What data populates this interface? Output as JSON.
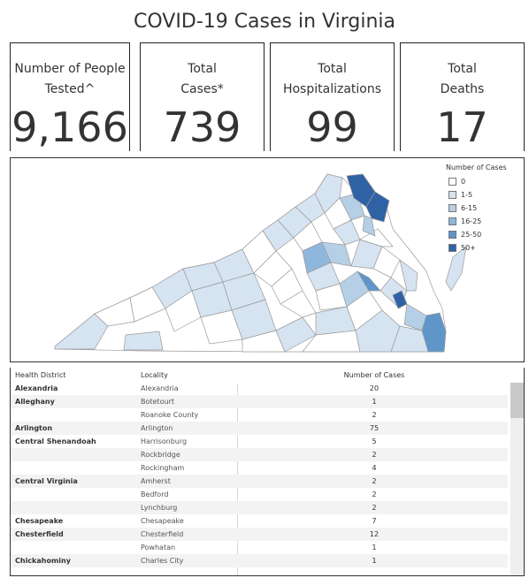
{
  "title": "COVID-19 Cases in Virginia",
  "kpis": [
    {
      "label": "Number of People\nTested^",
      "value": "9,166"
    },
    {
      "label": "Total\nCases*",
      "value": "739"
    },
    {
      "label": "Total\nHospitalizations",
      "value": "99"
    },
    {
      "label": "Total\nDeaths",
      "value": "17"
    }
  ],
  "legend": {
    "title": "Number of Cases",
    "items": [
      {
        "label": "0",
        "color": "#ffffff"
      },
      {
        "label": "1-5",
        "color": "#d6e3f1"
      },
      {
        "label": "6-15",
        "color": "#b5cfe7"
      },
      {
        "label": "16-25",
        "color": "#8fb7dd"
      },
      {
        "label": "25-50",
        "color": "#5f95c9"
      },
      {
        "label": "50+",
        "color": "#2f62a5"
      }
    ]
  },
  "table": {
    "headers": {
      "district": "Health District",
      "locality": "Locality",
      "cases": "Number of Cases"
    },
    "rows": [
      {
        "district": "Alexandria",
        "locality": "Alexandria",
        "cases": "20"
      },
      {
        "district": "Alleghany",
        "locality": "Botetourt",
        "cases": "1"
      },
      {
        "district": "",
        "locality": "Roanoke County",
        "cases": "2"
      },
      {
        "district": "Arlington",
        "locality": "Arlington",
        "cases": "75"
      },
      {
        "district": "Central Shenandoah",
        "locality": "Harrisonburg",
        "cases": "5"
      },
      {
        "district": "",
        "locality": "Rockbridge",
        "cases": "2"
      },
      {
        "district": "",
        "locality": "Rockingham",
        "cases": "4"
      },
      {
        "district": "Central Virginia",
        "locality": "Amherst",
        "cases": "2"
      },
      {
        "district": "",
        "locality": "Bedford",
        "cases": "2"
      },
      {
        "district": "",
        "locality": "Lynchburg",
        "cases": "2"
      },
      {
        "district": "Chesapeake",
        "locality": "Chesapeake",
        "cases": "7"
      },
      {
        "district": "Chesterfield",
        "locality": "Chesterfield",
        "cases": "12"
      },
      {
        "district": "",
        "locality": "Powhatan",
        "cases": "1"
      },
      {
        "district": "Chickahominy",
        "locality": "Charles City",
        "cases": "1"
      }
    ]
  }
}
